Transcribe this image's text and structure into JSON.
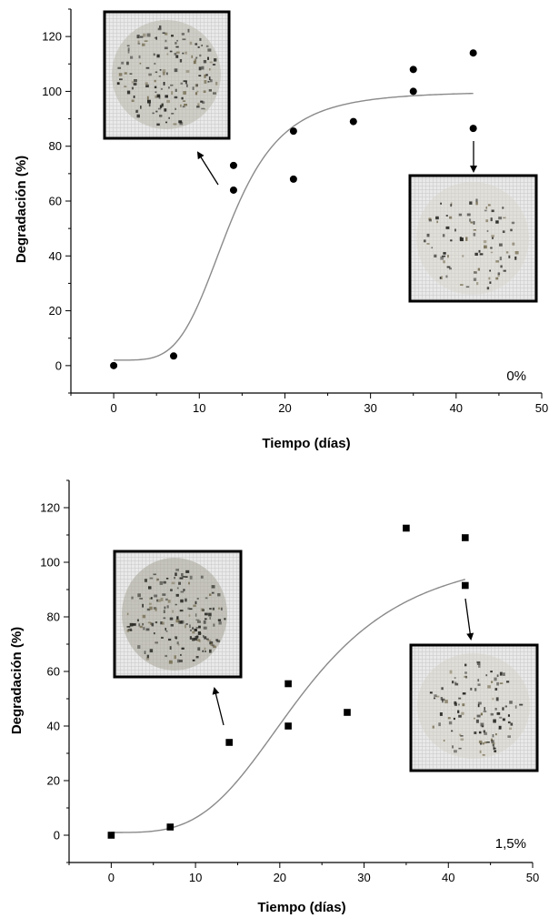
{
  "chart_data": [
    {
      "type": "scatter",
      "panel_label": "0%",
      "xlabel": "Tiempo (días)",
      "ylabel": "Degradación (%)",
      "xlim": [
        -5,
        50
      ],
      "ylim": [
        -10,
        130
      ],
      "xticks": [
        0,
        10,
        20,
        30,
        40,
        50
      ],
      "yticks": [
        0,
        20,
        40,
        60,
        80,
        100,
        120
      ],
      "marker": "circle",
      "series": [
        {
          "points": [
            {
              "x": 0,
              "y": 0
            },
            {
              "x": 7,
              "y": 3.5
            },
            {
              "x": 14,
              "y": 73
            },
            {
              "x": 14,
              "y": 64
            },
            {
              "x": 21,
              "y": 85.5
            },
            {
              "x": 21,
              "y": 68
            },
            {
              "x": 28,
              "y": 89
            },
            {
              "x": 35,
              "y": 108
            },
            {
              "x": 35,
              "y": 100
            },
            {
              "x": 42,
              "y": 114
            },
            {
              "x": 42,
              "y": 86.5
            }
          ]
        }
      ],
      "fit_curve": {
        "A1": 2,
        "A2": 100,
        "x0": 13.5,
        "p": 4.3,
        "xmin": 0,
        "xmax": 42
      },
      "color": "#000000",
      "curve_color": "#8a8a8a"
    },
    {
      "type": "scatter",
      "panel_label": "1,5%",
      "xlabel": "Tiempo (días)",
      "ylabel": "Degradación (%)",
      "xlim": [
        -5,
        50
      ],
      "ylim": [
        -10,
        130
      ],
      "xticks": [
        0,
        10,
        20,
        30,
        40,
        50
      ],
      "yticks": [
        0,
        20,
        40,
        60,
        80,
        100,
        120
      ],
      "marker": "square",
      "series": [
        {
          "points": [
            {
              "x": 0,
              "y": 0
            },
            {
              "x": 7,
              "y": 3
            },
            {
              "x": 14,
              "y": 34
            },
            {
              "x": 21,
              "y": 55.5
            },
            {
              "x": 21,
              "y": 40
            },
            {
              "x": 28,
              "y": 45
            },
            {
              "x": 35,
              "y": 112.5
            },
            {
              "x": 42,
              "y": 109
            },
            {
              "x": 42,
              "y": 91.5
            }
          ]
        }
      ],
      "fit_curve": {
        "A1": 1,
        "A2": 105,
        "x0": 23,
        "p": 3.5,
        "xmin": 0,
        "xmax": 42
      },
      "color": "#000000",
      "curve_color": "#8a8a8a"
    }
  ],
  "inset_photos": [
    {
      "name": "sample-photo-day-14-0pct",
      "description": "mesh sample disc, dense dark fragments"
    },
    {
      "name": "sample-photo-day-42-0pct",
      "description": "mesh sample disc, sparse dark fragments"
    },
    {
      "name": "sample-photo-day-14-1.5pct",
      "description": "mesh sample disc, dense dark fragments"
    },
    {
      "name": "sample-photo-day-42-1.5pct",
      "description": "mesh sample disc, scattered dark fragments"
    }
  ]
}
